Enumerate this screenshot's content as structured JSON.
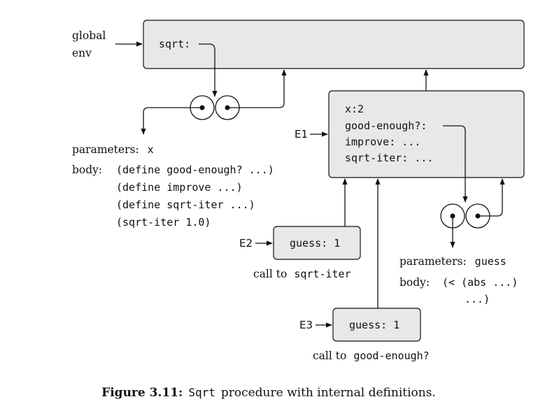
{
  "global_env": {
    "label_line1": "global",
    "label_line2": "env",
    "binding": "sqrt:"
  },
  "sqrt_procedure": {
    "parameters_label": "parameters:",
    "parameters_value": "x",
    "body_label": "body:",
    "body_lines": [
      "(define good-enough? ...)",
      "(define improve ...)",
      "(define sqrt-iter ...)",
      "(sqrt-iter 1.0)"
    ]
  },
  "e1": {
    "label": "E1",
    "bindings": [
      "x:2",
      "good-enough?:",
      "improve: ...",
      "sqrt-iter: ..."
    ]
  },
  "good_enough_procedure": {
    "parameters_label": "parameters:",
    "parameters_value": "guess",
    "body_label": "body:",
    "body_lines": [
      "(< (abs ...)",
      "...)"
    ]
  },
  "e2": {
    "label": "E2",
    "binding": "guess: 1",
    "call_text": "call to",
    "call_proc": "sqrt-iter"
  },
  "e3": {
    "label": "E3",
    "binding": "guess: 1",
    "call_text": "call to",
    "call_proc": "good-enough?"
  },
  "caption": {
    "number": "Figure 3.11:",
    "proc": "Sqrt",
    "text": "procedure with internal definitions."
  }
}
